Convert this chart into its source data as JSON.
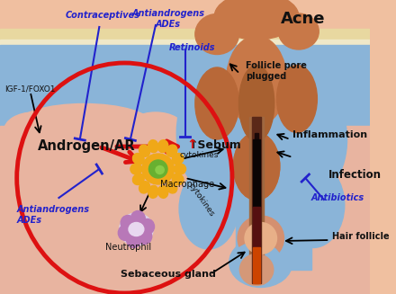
{
  "title": "Acne",
  "bg_skin": "#f0c0a0",
  "skin_top_yellow": "#e8d8a0",
  "skin_blue": "#8ab4d8",
  "skin_blue2": "#7aaaca",
  "skin_pink": "#e8b8a4",
  "follicle_brown": "#c87848",
  "follicle_brown2": "#b86838",
  "follicle_outline": "#d49060",
  "red_circle": "#dd1111",
  "mac_yellow": "#f0a818",
  "mac_green": "#68b030",
  "neut_bg": "#ddd0e8",
  "neut_purple": "#b878b8",
  "hair_dark": "#1a0808",
  "hair_mid": "#6a1818",
  "hair_orange": "#dd5500",
  "blue_lbl": "#2222cc",
  "black_lbl": "#111111",
  "red_lbl": "#cc0000",
  "labels": {
    "title": "Acne",
    "contraceptives": "Contraceptives",
    "antiandrogens_top": "Antiandrogens\nADEs",
    "retinoids": "Retinoids",
    "igf": "IGF-1/FOXO1",
    "androgen": "Androgen/AR",
    "sebum": "↑Sebum",
    "macrophage": "Macrophage",
    "neutrophil": "Neutrophil",
    "antiandrogens_bot": "Antiandrogens\nADEs",
    "cytokines1": "cytokines",
    "cytokines2": "cytokines",
    "follicle_pore": "Follicle pore\nplugged",
    "inflammation": "Inflammation",
    "infection": "Infection",
    "antibiotics": "Antibiotics",
    "hair_follicle": "Hair follicle",
    "sebaceous_gland": "Sebaceous gland"
  }
}
